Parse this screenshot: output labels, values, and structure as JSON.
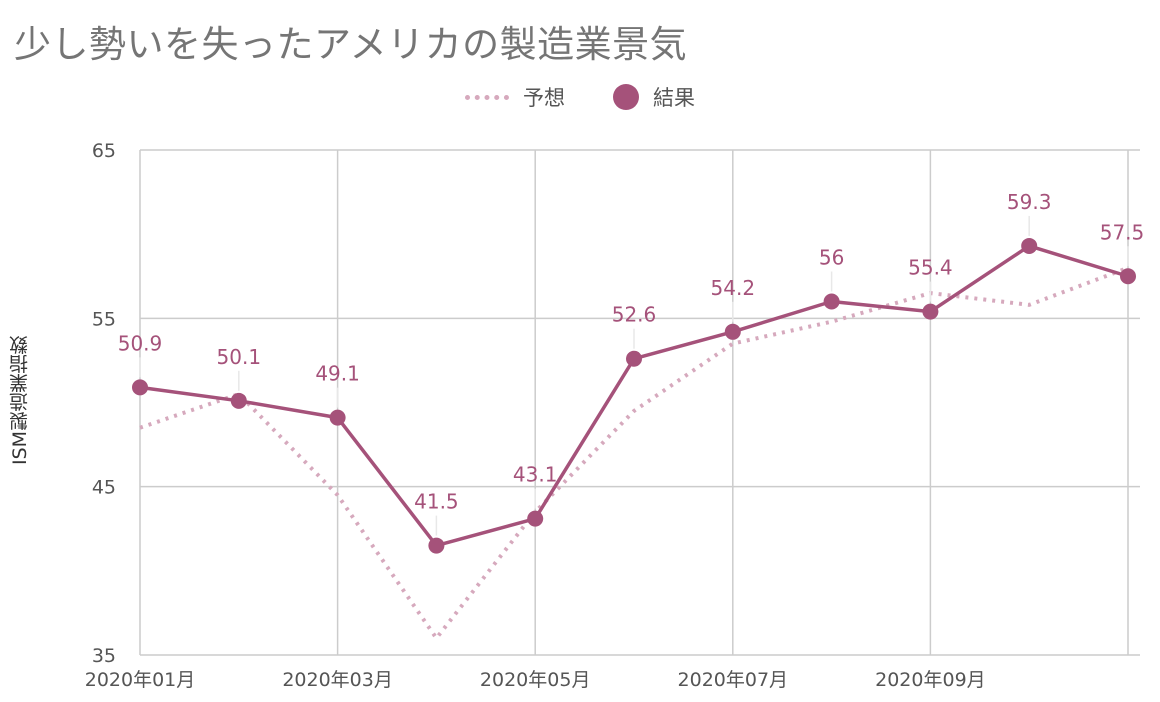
{
  "chart_data": {
    "type": "line",
    "title": "少し勢いを失ったアメリカの製造業景気",
    "xlabel": "",
    "ylabel": "ISM製造業指数",
    "ylim": [
      35,
      65
    ],
    "yticks": [
      35,
      45,
      55,
      65
    ],
    "grid": true,
    "legend_position": "top-center",
    "x": [
      "2020-01",
      "2020-02",
      "2020-03",
      "2020-04",
      "2020-05",
      "2020-06",
      "2020-07",
      "2020-08",
      "2020-09",
      "2020-10",
      "2020-11"
    ],
    "x_tick_labels": [
      {
        "index": 0,
        "label": "2020年01月"
      },
      {
        "index": 2,
        "label": "2020年03月"
      },
      {
        "index": 4,
        "label": "2020年05月"
      },
      {
        "index": 6,
        "label": "2020年07月"
      },
      {
        "index": 8,
        "label": "2020年09月"
      }
    ],
    "series": [
      {
        "name": "予想",
        "style": "dotted",
        "color": "#d6a9bd",
        "values": [
          48.5,
          50.5,
          44.5,
          36,
          43.5,
          49.5,
          53.5,
          54.8,
          56.5,
          55.8,
          58
        ]
      },
      {
        "name": "結果",
        "style": "solid-markers",
        "color": "#a5527a",
        "values": [
          50.9,
          50.1,
          49.1,
          41.5,
          43.1,
          52.6,
          54.2,
          56,
          55.4,
          59.3,
          57.5
        ],
        "data_labels": [
          "50.9",
          "50.1",
          "49.1",
          "41.5",
          "43.1",
          "52.6",
          "54.2",
          "56",
          "55.4",
          "59.3",
          "57.5"
        ]
      }
    ]
  }
}
